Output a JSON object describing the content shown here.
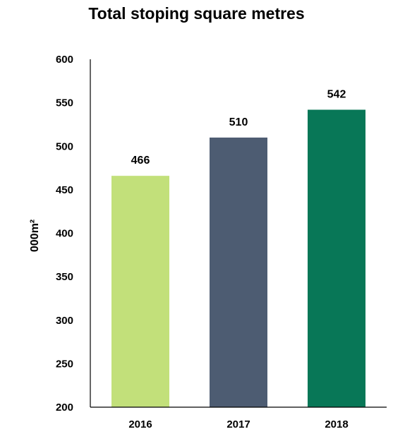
{
  "chart_data": {
    "type": "bar",
    "title": "Total stoping square metres",
    "ylabel": "000m²",
    "xlabel": "",
    "categories": [
      "2016",
      "2017",
      "2018"
    ],
    "values": [
      466,
      510,
      542
    ],
    "colors": [
      "#c2e07a",
      "#4d5c72",
      "#087757"
    ],
    "ylim": [
      200,
      600
    ],
    "yticks": [
      "200",
      "250",
      "300",
      "350",
      "400",
      "450",
      "500",
      "550",
      "600"
    ],
    "data_labels": [
      "466",
      "510",
      "542"
    ],
    "grid": false,
    "legend": "none"
  }
}
